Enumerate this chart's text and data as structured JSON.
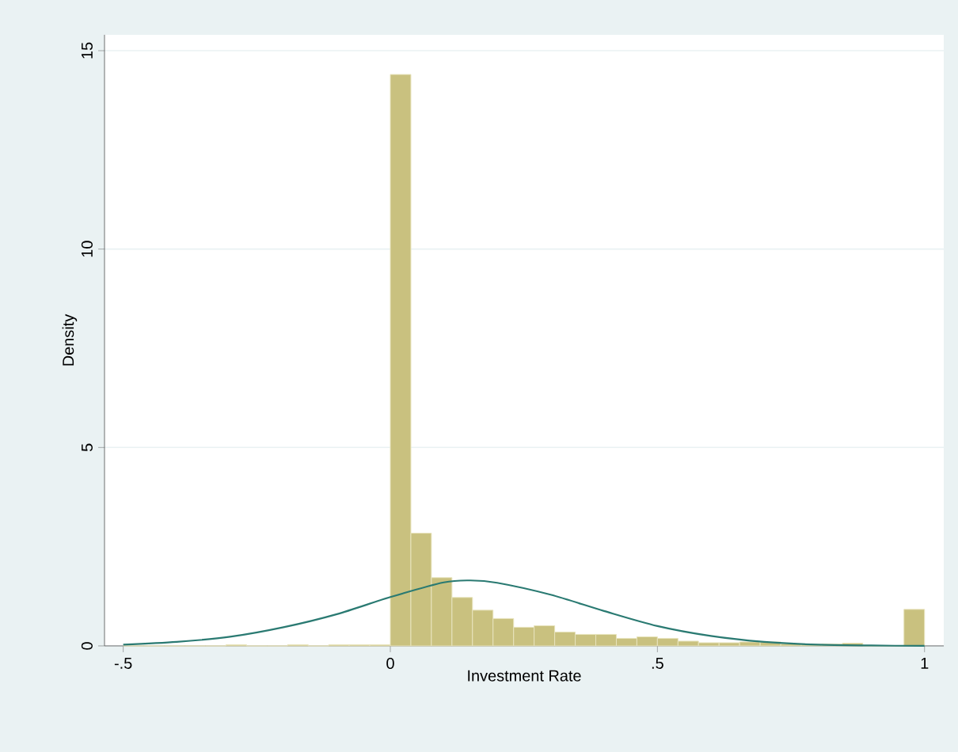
{
  "chart_data": {
    "type": "histogram",
    "xlabel": "Investment Rate",
    "ylabel": "Density",
    "bins": [
      -0.5,
      -0.4615,
      -0.4231,
      -0.3846,
      -0.3462,
      -0.3077,
      -0.2692,
      -0.2308,
      -0.1923,
      -0.1538,
      -0.1154,
      -0.0769,
      -0.0385,
      0,
      0.0385,
      0.0769,
      0.1154,
      0.1538,
      0.1923,
      0.2308,
      0.2692,
      0.3077,
      0.3462,
      0.3846,
      0.4231,
      0.4615,
      0.5,
      0.5385,
      0.5769,
      0.6154,
      0.6538,
      0.6923,
      0.7308,
      0.7692,
      0.8077,
      0.8462,
      0.8846,
      0.9231,
      0.9615,
      1
    ],
    "values": [
      0,
      0,
      0,
      0,
      0,
      0.03,
      0,
      0,
      0.03,
      0,
      0.03,
      0.03,
      0.03,
      14.4,
      2.84,
      1.72,
      1.22,
      0.9,
      0.69,
      0.47,
      0.51,
      0.35,
      0.29,
      0.29,
      0.19,
      0.23,
      0.19,
      0.12,
      0.08,
      0.08,
      0.1,
      0.1,
      0.05,
      0.04,
      0.05,
      0.07,
      0,
      0,
      0.92
    ],
    "color": "#c9c17f",
    "series": [
      {
        "type": "line",
        "color": "#2a7a72",
        "x": [
          -0.5,
          -0.4,
          -0.3,
          -0.2,
          -0.1,
          0,
          0.1,
          0.15,
          0.2,
          0.3,
          0.4,
          0.5,
          0.6,
          0.7,
          0.8,
          0.9,
          1
        ],
        "values": [
          0.03,
          0.1,
          0.23,
          0.47,
          0.8,
          1.23,
          1.6,
          1.65,
          1.59,
          1.29,
          0.88,
          0.5,
          0.25,
          0.1,
          0.03,
          0.01,
          0
        ]
      }
    ],
    "xlim": [
      -0.535,
      1.036
    ],
    "ylim": [
      0,
      15.4
    ],
    "xticks": [
      {
        "value": -0.5,
        "label": "-.5"
      },
      0,
      {
        "value": 0.5,
        "label": ".5"
      },
      1
    ],
    "yticks": [
      0,
      5,
      10,
      15
    ],
    "grid": "y"
  }
}
